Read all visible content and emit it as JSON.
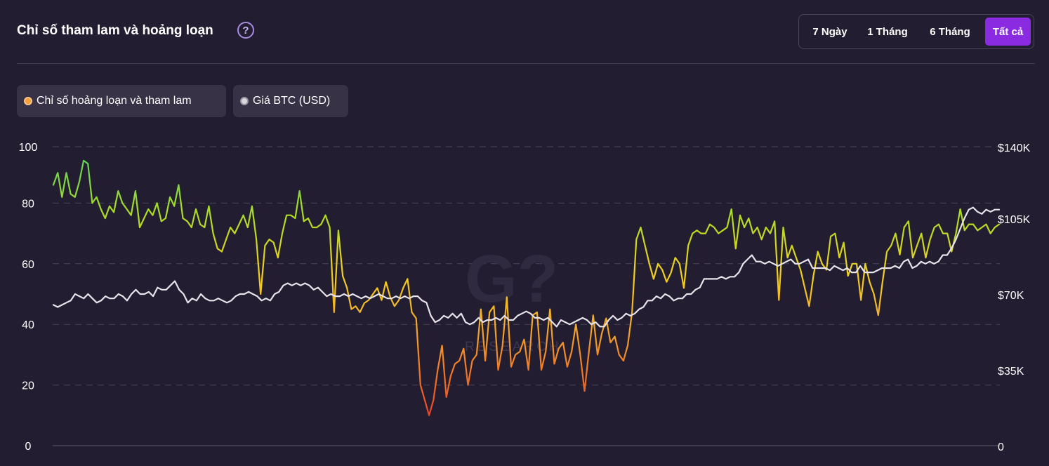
{
  "header": {
    "title": "Chỉ số tham lam và hoảng loạn",
    "help_icon": "question-circle-icon"
  },
  "range_buttons": [
    {
      "label": "7 Ngày",
      "active": false
    },
    {
      "label": "1 Tháng",
      "active": false
    },
    {
      "label": "6 Tháng",
      "active": false
    },
    {
      "label": "Tất cả",
      "active": true
    }
  ],
  "legend": [
    {
      "label": "Chỉ số hoảng loạn và tham lam",
      "color": "#f7a13a"
    },
    {
      "label": "Giá BTC (USD)",
      "color": "#d9d9d9"
    }
  ],
  "colors": {
    "background": "#231d31",
    "accent": "#8a2be2",
    "fear": "#e8432a",
    "neutral": "#f2c418",
    "greed": "#5fd35b",
    "btc_line": "#e6e4ea"
  },
  "chart_data": {
    "type": "line",
    "title": "",
    "xlabel": "",
    "left_axis": {
      "ticks": [
        "100",
        "80",
        "60",
        "40",
        "20",
        "0"
      ],
      "ylim": [
        0,
        100
      ]
    },
    "right_axis": {
      "ticks": [
        "$140K",
        "$105K",
        "$70K",
        "$35K",
        "0"
      ],
      "ylim": [
        0,
        140000
      ]
    },
    "grid": true,
    "series": [
      {
        "name": "Chỉ số hoảng loạn và tham lam",
        "axis": "left",
        "values": [
          86,
          90,
          82,
          90,
          83,
          82,
          87,
          94,
          93,
          80,
          82,
          78,
          75,
          79,
          77,
          84,
          80,
          78,
          76,
          84,
          72,
          75,
          78,
          76,
          80,
          74,
          75,
          82,
          79,
          86,
          75,
          74,
          72,
          78,
          73,
          72,
          79,
          70,
          65,
          64,
          68,
          72,
          70,
          73,
          76,
          72,
          79,
          68,
          50,
          66,
          68,
          67,
          62,
          70,
          76,
          76,
          75,
          84,
          74,
          75,
          72,
          72,
          73,
          76,
          72,
          44,
          71,
          56,
          52,
          45,
          46,
          44,
          47,
          48,
          50,
          52,
          48,
          54,
          49,
          46,
          48,
          52,
          55,
          44,
          42,
          20,
          15,
          10,
          15,
          25,
          33,
          16,
          23,
          27,
          28,
          32,
          20,
          28,
          30,
          45,
          28,
          44,
          46,
          25,
          33,
          49,
          26,
          30,
          31,
          35,
          25,
          43,
          44,
          25,
          31,
          45,
          27,
          32,
          34,
          26,
          31,
          40,
          30,
          18,
          31,
          43,
          30,
          37,
          42,
          34,
          36,
          30,
          28,
          33,
          44,
          68,
          72,
          66,
          60,
          55,
          60,
          58,
          54,
          57,
          62,
          60,
          52,
          66,
          70,
          71,
          70,
          70,
          73,
          72,
          70,
          71,
          72,
          78,
          65,
          76,
          72,
          75,
          70,
          72,
          68,
          72,
          70,
          74,
          48,
          72,
          62,
          66,
          62,
          58,
          52,
          46,
          56,
          64,
          60,
          58,
          69,
          70,
          62,
          67,
          56,
          60,
          60,
          48,
          60,
          54,
          50,
          43,
          54,
          64,
          66,
          70,
          63,
          72,
          74,
          62,
          66,
          70,
          62,
          68,
          72,
          73,
          70,
          70,
          64,
          70,
          78,
          71,
          73,
          73,
          71,
          72,
          73,
          70,
          72,
          73
        ],
        "color_scale": [
          "#e8432a",
          "#f2c418",
          "#5fd35b"
        ]
      },
      {
        "name": "Giá BTC (USD)",
        "axis": "right",
        "values": [
          65000,
          64000,
          65000,
          66000,
          67000,
          70000,
          69000,
          68000,
          70000,
          68000,
          66000,
          67000,
          69000,
          68000,
          68000,
          70000,
          69000,
          67000,
          70000,
          72000,
          70000,
          70000,
          71000,
          69000,
          73000,
          72000,
          72000,
          74000,
          76000,
          72000,
          70000,
          66000,
          68000,
          67000,
          70000,
          68000,
          67000,
          67000,
          68000,
          67000,
          66000,
          67000,
          69000,
          70000,
          70000,
          71000,
          70000,
          69000,
          67000,
          68000,
          67000,
          70000,
          71000,
          74000,
          75000,
          74000,
          75000,
          74000,
          75000,
          74000,
          72000,
          73000,
          71000,
          69000,
          70000,
          69000,
          69000,
          70000,
          69000,
          70000,
          69000,
          68000,
          69000,
          68000,
          69000,
          70000,
          69000,
          68000,
          68000,
          69000,
          68000,
          69000,
          68000,
          69000,
          69000,
          67000,
          66000,
          60000,
          57000,
          58000,
          60000,
          59000,
          61000,
          59000,
          61000,
          57000,
          56000,
          57000,
          59000,
          57000,
          58000,
          58000,
          59000,
          58000,
          60000,
          58000,
          58000,
          60000,
          61000,
          62000,
          61000,
          59000,
          59000,
          58000,
          59000,
          57000,
          55000,
          58000,
          57000,
          56000,
          57000,
          58000,
          59000,
          58000,
          56000,
          57000,
          55000,
          55000,
          58000,
          60000,
          58000,
          59000,
          61000,
          60000,
          61000,
          63000,
          64000,
          67000,
          67000,
          69000,
          68000,
          70000,
          69000,
          67000,
          68000,
          68000,
          70000,
          70000,
          72000,
          73000,
          77000,
          77000,
          77000,
          77000,
          78000,
          77000,
          78000,
          78000,
          80000,
          84000,
          86000,
          88000,
          85000,
          85000,
          84000,
          85000,
          84000,
          83000,
          84000,
          85000,
          86000,
          84000,
          84000,
          85000,
          86000,
          82000,
          82000,
          82000,
          82000,
          81000,
          83000,
          82000,
          81000,
          82000,
          80000,
          80000,
          83000,
          80000,
          80000,
          80000,
          81000,
          82000,
          82000,
          82000,
          83000,
          82000,
          85000,
          86000,
          82000,
          83000,
          85000,
          84000,
          85000,
          84000,
          85000,
          88000,
          88000,
          91000,
          95000,
          100000,
          105000,
          109000,
          110000,
          108000,
          107000,
          109000,
          108000,
          109000,
          109000
        ]
      }
    ],
    "watermark": "G?? RESEARCH"
  }
}
